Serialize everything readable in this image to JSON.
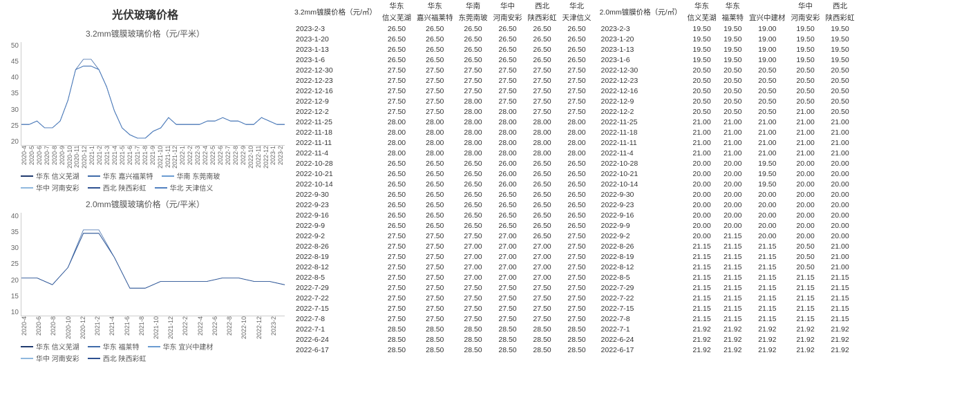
{
  "title": "光伏玻璃价格",
  "charts": [
    {
      "title": "3.2mm镀膜玻璃价格（元/平米）",
      "y_ticks": [
        "50",
        "45",
        "40",
        "35",
        "30",
        "25",
        "20"
      ],
      "ylim": [
        20,
        50
      ],
      "x_ticks": [
        "2020-4",
        "2020-5",
        "2020-6",
        "2020-7",
        "2020-8",
        "2020-9",
        "2020-10",
        "2020-11",
        "2020-12",
        "2021-1",
        "2021-2",
        "2021-3",
        "2021-4",
        "2021-5",
        "2021-6",
        "2021-7",
        "2021-8",
        "2021-9",
        "2021-10",
        "2021-11",
        "2021-12",
        "2022-1",
        "2022-2",
        "2022-3",
        "2022-4",
        "2022-5",
        "2022-6",
        "2022-7",
        "2022-8",
        "2022-9",
        "2022-10",
        "2022-11",
        "2022-12",
        "2023-1",
        "2023-2"
      ],
      "series": [
        {
          "name": "华东 信义芜湖",
          "color": "#1f3a6e",
          "values": [
            26,
            26,
            27,
            25,
            25,
            27,
            33,
            42,
            43,
            43,
            42,
            37,
            30,
            25,
            23,
            22,
            22,
            24,
            25,
            28,
            26,
            26,
            26,
            26,
            27,
            27,
            28,
            27,
            27,
            26,
            26,
            28,
            27,
            26,
            26
          ]
        },
        {
          "name": "华东 嘉兴福莱特",
          "color": "#3e6aa8",
          "values": [
            26,
            26,
            27,
            25,
            25,
            27,
            33,
            42,
            45,
            45,
            42,
            37,
            30,
            25,
            23,
            22,
            22,
            24,
            25,
            28,
            26,
            26,
            26,
            26,
            27,
            27,
            28,
            27,
            27,
            26,
            26,
            28,
            27,
            26,
            26
          ]
        },
        {
          "name": "华南 东莞南玻",
          "color": "#6a9bd1",
          "values": [
            26,
            26,
            27,
            25,
            25,
            27,
            33,
            42,
            43,
            43,
            42,
            37,
            30,
            25,
            23,
            22,
            22,
            24,
            25,
            28,
            26,
            26,
            26,
            26,
            27,
            27,
            28,
            27,
            27,
            26,
            26,
            28,
            27,
            26,
            26
          ]
        },
        {
          "name": "华中 河南安彩",
          "color": "#8fb8de",
          "values": [
            26,
            26,
            27,
            25,
            25,
            27,
            33,
            42,
            43,
            43,
            42,
            37,
            30,
            25,
            23,
            22,
            22,
            24,
            25,
            28,
            26,
            26,
            26,
            26,
            27,
            27,
            28,
            27,
            27,
            26,
            26,
            28,
            27,
            26,
            26
          ]
        },
        {
          "name": "西北 陕西彩虹",
          "color": "#2d5090",
          "values": [
            26,
            26,
            27,
            25,
            25,
            27,
            33,
            42,
            43,
            43,
            42,
            37,
            30,
            25,
            23,
            22,
            22,
            24,
            25,
            28,
            26,
            26,
            26,
            26,
            27,
            27,
            28,
            27,
            27,
            26,
            26,
            28,
            27,
            26,
            26
          ]
        },
        {
          "name": "华北 天津信义",
          "color": "#5080c0",
          "values": [
            26,
            26,
            27,
            25,
            25,
            27,
            33,
            42,
            43,
            43,
            42,
            37,
            30,
            25,
            23,
            22,
            22,
            24,
            25,
            28,
            26,
            26,
            26,
            26,
            27,
            27,
            28,
            27,
            27,
            26,
            26,
            28,
            27,
            26,
            26
          ]
        }
      ]
    },
    {
      "title": "2.0mm镀膜玻璃价格（元/平米）",
      "y_ticks": [
        "40",
        "35",
        "30",
        "25",
        "20",
        "15",
        "10"
      ],
      "ylim": [
        10,
        40
      ],
      "x_ticks": [
        "2020-4",
        "2020-6",
        "2020-8",
        "2020-10",
        "2020-12",
        "2021-2",
        "2021-4",
        "2021-6",
        "2021-8",
        "2021-10",
        "2021-12",
        "2022-2",
        "2022-4",
        "2022-6",
        "2022-8",
        "2022-10",
        "2022-12",
        "2023-2"
      ],
      "series": [
        {
          "name": "华东 信义芜湖",
          "color": "#1f3a6e",
          "values": [
            21,
            21,
            19,
            24,
            34,
            34,
            27,
            18,
            18,
            20,
            20,
            20,
            20,
            21,
            21,
            20,
            20,
            19
          ]
        },
        {
          "name": "华东 福莱特",
          "color": "#3e6aa8",
          "values": [
            21,
            21,
            19,
            24,
            35,
            35,
            27,
            18,
            18,
            20,
            20,
            20,
            20,
            21,
            21,
            20,
            20,
            19
          ]
        },
        {
          "name": "华东 宜兴中建材",
          "color": "#6a9bd1",
          "values": [
            21,
            21,
            19,
            24,
            34,
            34,
            27,
            18,
            18,
            20,
            20,
            20,
            20,
            21,
            21,
            20,
            20,
            19
          ]
        },
        {
          "name": "华中 河南安彩",
          "color": "#8fb8de",
          "values": [
            21,
            21,
            19,
            24,
            34,
            34,
            27,
            18,
            18,
            20,
            20,
            20,
            20,
            21,
            21,
            20,
            20,
            19
          ]
        },
        {
          "name": "西北 陕西彩虹",
          "color": "#2d5090",
          "values": [
            21,
            21,
            19,
            24,
            34,
            34,
            27,
            18,
            18,
            20,
            20,
            20,
            20,
            21,
            21,
            20,
            20,
            19
          ]
        }
      ]
    }
  ],
  "tables": [
    {
      "header_top": "3.2mm镀膜价格（元/㎡）",
      "columns_top": [
        "华东",
        "华东",
        "华南",
        "华中",
        "西北",
        "华北"
      ],
      "columns_sub": [
        "信义芜湖",
        "嘉兴福莱特",
        "东莞南玻",
        "河南安彩",
        "陕西彩虹",
        "天津信义"
      ],
      "rows": [
        [
          "2023-2-3",
          "26.50",
          "26.50",
          "26.50",
          "26.50",
          "26.50",
          "26.50"
        ],
        [
          "2023-1-20",
          "26.50",
          "26.50",
          "26.50",
          "26.50",
          "26.50",
          "26.50"
        ],
        [
          "2023-1-13",
          "26.50",
          "26.50",
          "26.50",
          "26.50",
          "26.50",
          "26.50"
        ],
        [
          "2023-1-6",
          "26.50",
          "26.50",
          "26.50",
          "26.50",
          "26.50",
          "26.50"
        ],
        [
          "2022-12-30",
          "27.50",
          "27.50",
          "27.50",
          "27.50",
          "27.50",
          "27.50"
        ],
        [
          "2022-12-23",
          "27.50",
          "27.50",
          "27.50",
          "27.50",
          "27.50",
          "27.50"
        ],
        [
          "2022-12-16",
          "27.50",
          "27.50",
          "27.50",
          "27.50",
          "27.50",
          "27.50"
        ],
        [
          "2022-12-9",
          "27.50",
          "27.50",
          "28.00",
          "27.50",
          "27.50",
          "27.50"
        ],
        [
          "2022-12-2",
          "27.50",
          "27.50",
          "28.00",
          "28.00",
          "27.50",
          "27.50"
        ],
        [
          "2022-11-25",
          "28.00",
          "28.00",
          "28.00",
          "28.00",
          "28.00",
          "28.00"
        ],
        [
          "2022-11-18",
          "28.00",
          "28.00",
          "28.00",
          "28.00",
          "28.00",
          "28.00"
        ],
        [
          "2022-11-11",
          "28.00",
          "28.00",
          "28.00",
          "28.00",
          "28.00",
          "28.00"
        ],
        [
          "2022-11-4",
          "28.00",
          "28.00",
          "28.00",
          "28.00",
          "28.00",
          "28.00"
        ],
        [
          "2022-10-28",
          "26.50",
          "26.50",
          "26.50",
          "26.00",
          "26.50",
          "26.50"
        ],
        [
          "2022-10-21",
          "26.50",
          "26.50",
          "26.50",
          "26.00",
          "26.50",
          "26.50"
        ],
        [
          "2022-10-14",
          "26.50",
          "26.50",
          "26.50",
          "26.00",
          "26.50",
          "26.50"
        ],
        [
          "2022-9-30",
          "26.50",
          "26.50",
          "26.50",
          "26.50",
          "26.50",
          "26.50"
        ],
        [
          "2022-9-23",
          "26.50",
          "26.50",
          "26.50",
          "26.50",
          "26.50",
          "26.50"
        ],
        [
          "2022-9-16",
          "26.50",
          "26.50",
          "26.50",
          "26.50",
          "26.50",
          "26.50"
        ],
        [
          "2022-9-9",
          "26.50",
          "26.50",
          "26.50",
          "26.50",
          "26.50",
          "26.50"
        ],
        [
          "2022-9-2",
          "27.50",
          "27.50",
          "27.50",
          "27.00",
          "26.50",
          "27.50"
        ],
        [
          "2022-8-26",
          "27.50",
          "27.50",
          "27.00",
          "27.00",
          "27.00",
          "27.50"
        ],
        [
          "2022-8-19",
          "27.50",
          "27.50",
          "27.00",
          "27.00",
          "27.00",
          "27.50"
        ],
        [
          "2022-8-12",
          "27.50",
          "27.50",
          "27.00",
          "27.00",
          "27.00",
          "27.50"
        ],
        [
          "2022-8-5",
          "27.50",
          "27.50",
          "27.00",
          "27.00",
          "27.00",
          "27.50"
        ],
        [
          "2022-7-29",
          "27.50",
          "27.50",
          "27.50",
          "27.50",
          "27.50",
          "27.50"
        ],
        [
          "2022-7-22",
          "27.50",
          "27.50",
          "27.50",
          "27.50",
          "27.50",
          "27.50"
        ],
        [
          "2022-7-15",
          "27.50",
          "27.50",
          "27.50",
          "27.50",
          "27.50",
          "27.50"
        ],
        [
          "2022-7-8",
          "27.50",
          "27.50",
          "27.50",
          "27.50",
          "27.50",
          "27.50"
        ],
        [
          "2022-7-1",
          "28.50",
          "28.50",
          "28.50",
          "28.50",
          "28.50",
          "28.50"
        ],
        [
          "2022-6-24",
          "28.50",
          "28.50",
          "28.50",
          "28.50",
          "28.50",
          "28.50"
        ],
        [
          "2022-6-17",
          "28.50",
          "28.50",
          "28.50",
          "28.50",
          "28.50",
          "28.50"
        ]
      ]
    },
    {
      "header_top": "2.0mm镀膜价格（元/㎡）",
      "columns_top": [
        "华东",
        "华东",
        "",
        "华中",
        "西北"
      ],
      "columns_sub": [
        "信义芜湖",
        "福莱特",
        "宜兴中建材",
        "河南安彩",
        "陕西彩虹"
      ],
      "rows": [
        [
          "2023-2-3",
          "19.50",
          "19.50",
          "19.00",
          "19.50",
          "19.50"
        ],
        [
          "2023-1-20",
          "19.50",
          "19.50",
          "19.00",
          "19.50",
          "19.50"
        ],
        [
          "2023-1-13",
          "19.50",
          "19.50",
          "19.00",
          "19.50",
          "19.50"
        ],
        [
          "2023-1-6",
          "19.50",
          "19.50",
          "19.00",
          "19.50",
          "19.50"
        ],
        [
          "2022-12-30",
          "20.50",
          "20.50",
          "20.50",
          "20.50",
          "20.50"
        ],
        [
          "2022-12-23",
          "20.50",
          "20.50",
          "20.50",
          "20.50",
          "20.50"
        ],
        [
          "2022-12-16",
          "20.50",
          "20.50",
          "20.50",
          "20.50",
          "20.50"
        ],
        [
          "2022-12-9",
          "20.50",
          "20.50",
          "20.50",
          "20.50",
          "20.50"
        ],
        [
          "2022-12-2",
          "20.50",
          "20.50",
          "20.50",
          "21.00",
          "20.50"
        ],
        [
          "2022-11-25",
          "21.00",
          "21.00",
          "21.00",
          "21.00",
          "21.00"
        ],
        [
          "2022-11-18",
          "21.00",
          "21.00",
          "21.00",
          "21.00",
          "21.00"
        ],
        [
          "2022-11-11",
          "21.00",
          "21.00",
          "21.00",
          "21.00",
          "21.00"
        ],
        [
          "2022-11-4",
          "21.00",
          "21.00",
          "21.00",
          "21.00",
          "21.00"
        ],
        [
          "2022-10-28",
          "20.00",
          "20.00",
          "19.50",
          "20.00",
          "20.00"
        ],
        [
          "2022-10-21",
          "20.00",
          "20.00",
          "19.50",
          "20.00",
          "20.00"
        ],
        [
          "2022-10-14",
          "20.00",
          "20.00",
          "19.50",
          "20.00",
          "20.00"
        ],
        [
          "2022-9-30",
          "20.00",
          "20.00",
          "20.00",
          "20.00",
          "20.00"
        ],
        [
          "2022-9-23",
          "20.00",
          "20.00",
          "20.00",
          "20.00",
          "20.00"
        ],
        [
          "2022-9-16",
          "20.00",
          "20.00",
          "20.00",
          "20.00",
          "20.00"
        ],
        [
          "2022-9-9",
          "20.00",
          "20.00",
          "20.00",
          "20.00",
          "20.00"
        ],
        [
          "2022-9-2",
          "20.00",
          "21.15",
          "20.00",
          "20.00",
          "20.00"
        ],
        [
          "2022-8-26",
          "21.15",
          "21.15",
          "21.15",
          "20.50",
          "21.00"
        ],
        [
          "2022-8-19",
          "21.15",
          "21.15",
          "21.15",
          "20.50",
          "21.00"
        ],
        [
          "2022-8-12",
          "21.15",
          "21.15",
          "21.15",
          "20.50",
          "21.00"
        ],
        [
          "2022-8-5",
          "21.15",
          "21.15",
          "21.15",
          "21.15",
          "21.15"
        ],
        [
          "2022-7-29",
          "21.15",
          "21.15",
          "21.15",
          "21.15",
          "21.15"
        ],
        [
          "2022-7-22",
          "21.15",
          "21.15",
          "21.15",
          "21.15",
          "21.15"
        ],
        [
          "2022-7-15",
          "21.15",
          "21.15",
          "21.15",
          "21.15",
          "21.15"
        ],
        [
          "2022-7-8",
          "21.15",
          "21.15",
          "21.15",
          "21.15",
          "21.15"
        ],
        [
          "2022-7-1",
          "21.92",
          "21.92",
          "21.92",
          "21.92",
          "21.92"
        ],
        [
          "2022-6-24",
          "21.92",
          "21.92",
          "21.92",
          "21.92",
          "21.92"
        ],
        [
          "2022-6-17",
          "21.92",
          "21.92",
          "21.92",
          "21.92",
          "21.92"
        ]
      ]
    }
  ],
  "accent_color": "#4a9d5e"
}
